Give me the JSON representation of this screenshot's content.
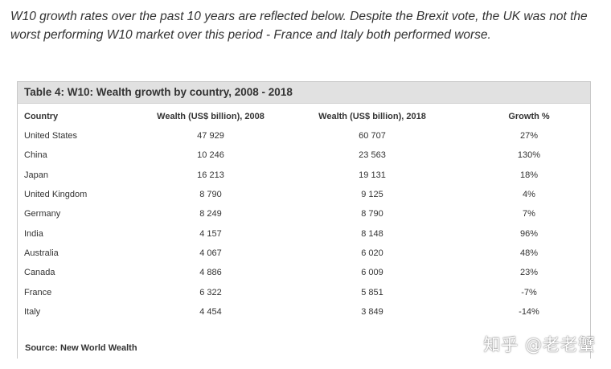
{
  "intro_text": "W10 growth rates over the past 10 years are reflected below. Despite the Brexit vote, the UK was not the worst performing W10 market over this period - France and Italy both performed worse.",
  "table": {
    "title": "Table 4: W10: Wealth growth by country, 2008 - 2018",
    "headers": [
      "Country",
      "Wealth (US$ billion), 2008",
      "Wealth (US$ billion), 2018",
      "Growth %"
    ],
    "rows": [
      [
        "United States",
        "47 929",
        "60 707",
        "27%"
      ],
      [
        "China",
        "10 246",
        "23 563",
        "130%"
      ],
      [
        "Japan",
        "16 213",
        "19 131",
        "18%"
      ],
      [
        "United Kingdom",
        "8 790",
        "9 125",
        "4%"
      ],
      [
        "Germany",
        "8 249",
        "8 790",
        "7%"
      ],
      [
        "India",
        "4 157",
        "8 148",
        "96%"
      ],
      [
        "Australia",
        "4 067",
        "6 020",
        "48%"
      ],
      [
        "Canada",
        "4 886",
        "6 009",
        "23%"
      ],
      [
        "France",
        "6 322",
        "5 851",
        "-7%"
      ],
      [
        "Italy",
        "4 454",
        "3 849",
        "-14%"
      ]
    ],
    "source": "Source: New World Wealth"
  },
  "watermark": "知乎 @老老蟹"
}
